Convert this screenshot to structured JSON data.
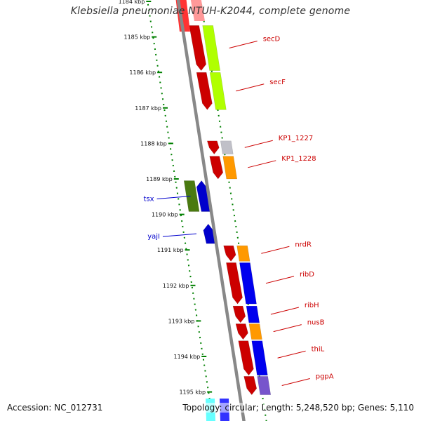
{
  "title": "Klebsiella pneumoniae NTUH-K2044, complete genome",
  "accession_text": "Accession: NC_012731",
  "topology_text": "Topology: circular; Length: 5,248,520 bp; Genes: 5,110",
  "colors": {
    "scale": "#008000",
    "backbone": "#888888",
    "gene_right": "#cc0000",
    "gene_left": "#0000cc",
    "label_right": "#cc0000",
    "label_left": "#0000cc"
  },
  "scale_labels": [
    {
      "kbp": 1184,
      "label": "1184 kbp"
    },
    {
      "kbp": 1185,
      "label": "1185 kbp"
    },
    {
      "kbp": 1186,
      "label": "1186 kbp"
    },
    {
      "kbp": 1187,
      "label": "1187 kbp"
    },
    {
      "kbp": 1188,
      "label": "1188 kbp"
    },
    {
      "kbp": 1189,
      "label": "1189 kbp"
    },
    {
      "kbp": 1190,
      "label": "1190 kbp"
    },
    {
      "kbp": 1191,
      "label": "1191 kbp"
    },
    {
      "kbp": 1192,
      "label": "1192 kbp"
    },
    {
      "kbp": 1193,
      "label": "1193 kbp"
    },
    {
      "kbp": 1194,
      "label": "1194 kbp"
    },
    {
      "kbp": 1195,
      "label": "1195 kbp"
    }
  ],
  "genes_right": [
    {
      "name": "secD",
      "start_kbp": 1184.68,
      "end_kbp": 1185.95,
      "cog_color": "#b0ff00"
    },
    {
      "name": "secF",
      "start_kbp": 1186.0,
      "end_kbp": 1187.05,
      "cog_color": "#b0ff00"
    },
    {
      "name": "KP1_1227",
      "start_kbp": 1187.93,
      "end_kbp": 1188.3,
      "cog_color": "#c0c0c8"
    },
    {
      "name": "KP1_1228",
      "start_kbp": 1188.36,
      "end_kbp": 1189.0,
      "cog_color": "#ff9900"
    },
    {
      "name": "nrdR",
      "start_kbp": 1190.88,
      "end_kbp": 1191.32,
      "cog_color": "#ff9900"
    },
    {
      "name": "ribD",
      "start_kbp": 1191.36,
      "end_kbp": 1192.52,
      "cog_color": "#0000ee"
    },
    {
      "name": "ribH",
      "start_kbp": 1192.58,
      "end_kbp": 1193.05,
      "cog_color": "#0000ee"
    },
    {
      "name": "nusB",
      "start_kbp": 1193.08,
      "end_kbp": 1193.52,
      "cog_color": "#ff9900"
    },
    {
      "name": "thiL",
      "start_kbp": 1193.56,
      "end_kbp": 1194.53,
      "cog_color": "#0000ee"
    },
    {
      "name": "pgpA",
      "start_kbp": 1194.56,
      "end_kbp": 1195.08,
      "cog_color": "#7755cc"
    }
  ],
  "genes_left": [
    {
      "name": "tsx",
      "start_kbp": 1189.05,
      "end_kbp": 1189.92,
      "cog_color": "#4a7a10"
    },
    {
      "name": "yajI",
      "start_kbp": 1190.27,
      "end_kbp": 1190.82,
      "cog_color": ""
    }
  ]
}
